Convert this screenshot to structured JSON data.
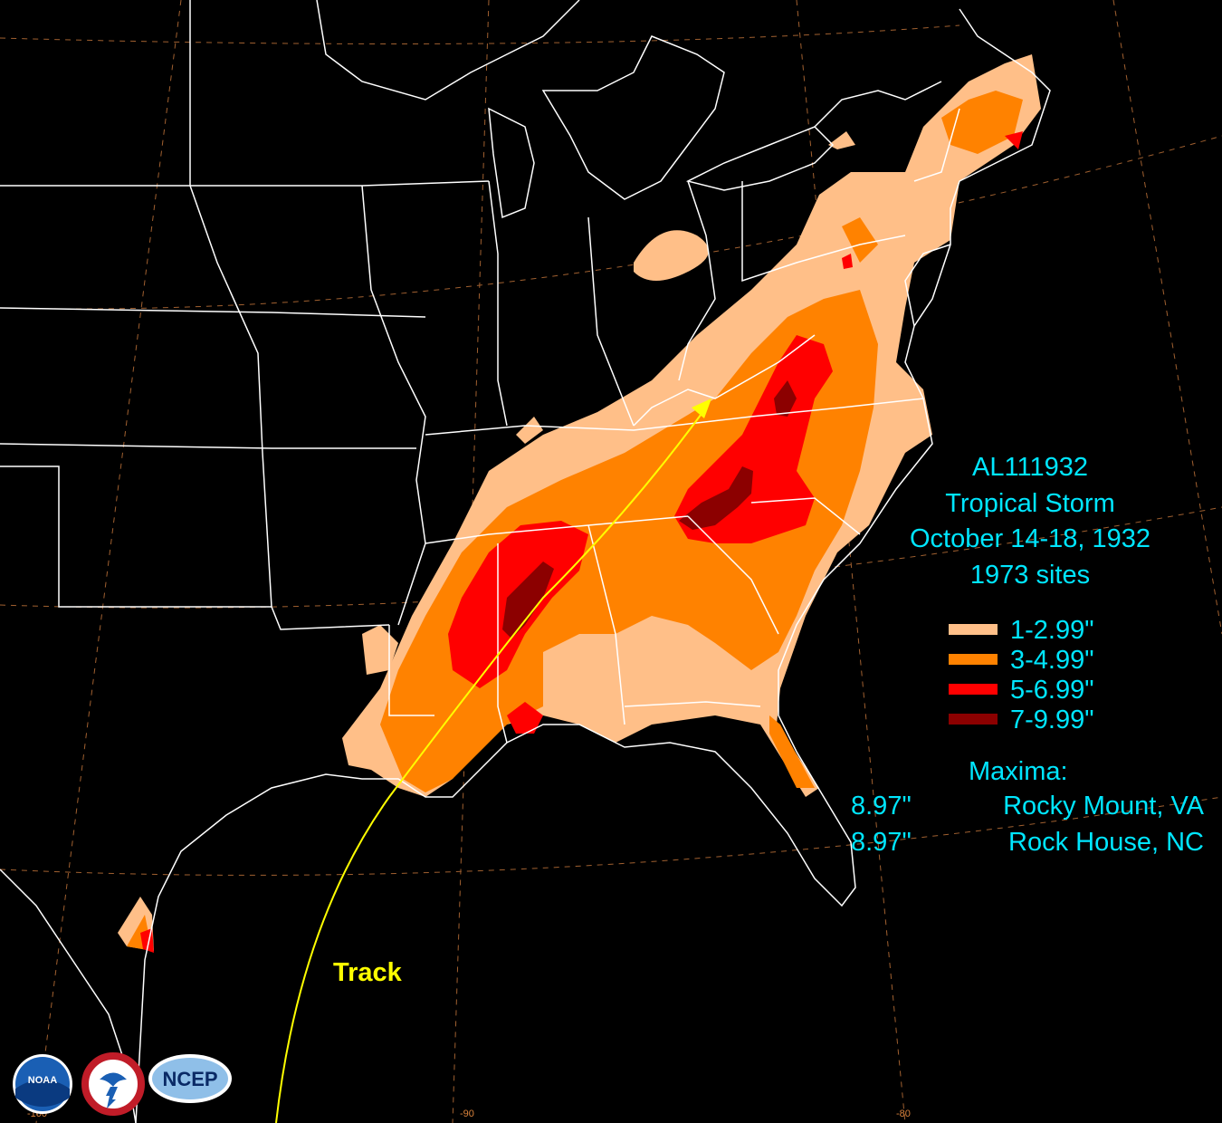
{
  "title": {
    "storm_id": "AL111932",
    "storm_type": "Tropical Storm",
    "dates": "October 14-18, 1932",
    "sites": "1973 sites"
  },
  "legend": [
    {
      "label": "1-2.99\"",
      "color": "#ffbf88"
    },
    {
      "label": "3-4.99\"",
      "color": "#ff8200"
    },
    {
      "label": "5-6.99\"",
      "color": "#ff0000"
    },
    {
      "label": "7-9.99\"",
      "color": "#8c0000"
    }
  ],
  "maxima": {
    "heading": "Maxima:",
    "rows": [
      {
        "value": "8.97\"",
        "location": "Rocky Mount, VA"
      },
      {
        "value": "8.97\"",
        "location": "Rock House, NC"
      }
    ]
  },
  "track_label": "Track",
  "longitude_ticks": [
    "-100",
    "-90",
    "-80"
  ],
  "logos": {
    "noaa": "NOAA",
    "nws": "NATIONAL WEATHER SERVICE",
    "ncep": "NCEP"
  },
  "colors": {
    "background": "#000000",
    "borders": "#ffffff",
    "graticule": "#c8783c",
    "text": "#00e6ff",
    "track": "#ffff00"
  }
}
